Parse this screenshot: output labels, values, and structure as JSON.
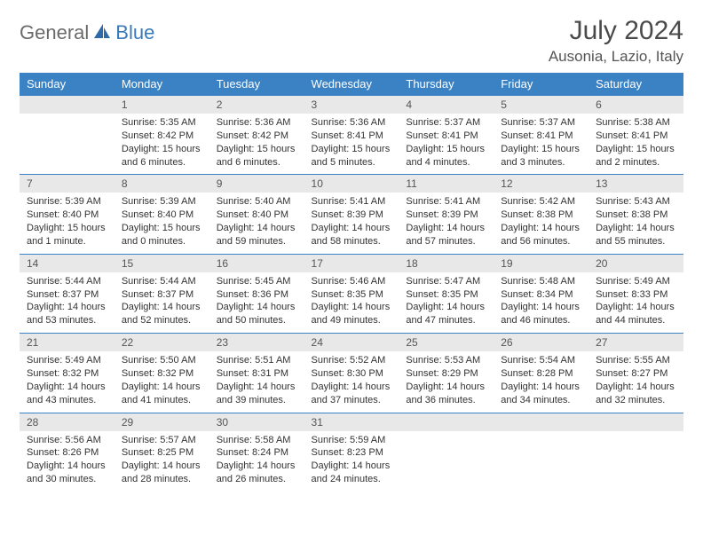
{
  "logo": {
    "text1": "General",
    "text2": "Blue",
    "icon_color": "#2e6aa8"
  },
  "header": {
    "month_title": "July 2024",
    "location": "Ausonia, Lazio, Italy"
  },
  "colors": {
    "header_bg": "#3a82c4",
    "header_text": "#ffffff",
    "daynum_bg": "#e8e8e8",
    "border": "#3a82c4",
    "body_text": "#333333"
  },
  "weekdays": [
    "Sunday",
    "Monday",
    "Tuesday",
    "Wednesday",
    "Thursday",
    "Friday",
    "Saturday"
  ],
  "weeks": [
    [
      null,
      {
        "n": "1",
        "sr": "5:35 AM",
        "ss": "8:42 PM",
        "dl": "15 hours and 6 minutes."
      },
      {
        "n": "2",
        "sr": "5:36 AM",
        "ss": "8:42 PM",
        "dl": "15 hours and 6 minutes."
      },
      {
        "n": "3",
        "sr": "5:36 AM",
        "ss": "8:41 PM",
        "dl": "15 hours and 5 minutes."
      },
      {
        "n": "4",
        "sr": "5:37 AM",
        "ss": "8:41 PM",
        "dl": "15 hours and 4 minutes."
      },
      {
        "n": "5",
        "sr": "5:37 AM",
        "ss": "8:41 PM",
        "dl": "15 hours and 3 minutes."
      },
      {
        "n": "6",
        "sr": "5:38 AM",
        "ss": "8:41 PM",
        "dl": "15 hours and 2 minutes."
      }
    ],
    [
      {
        "n": "7",
        "sr": "5:39 AM",
        "ss": "8:40 PM",
        "dl": "15 hours and 1 minute."
      },
      {
        "n": "8",
        "sr": "5:39 AM",
        "ss": "8:40 PM",
        "dl": "15 hours and 0 minutes."
      },
      {
        "n": "9",
        "sr": "5:40 AM",
        "ss": "8:40 PM",
        "dl": "14 hours and 59 minutes."
      },
      {
        "n": "10",
        "sr": "5:41 AM",
        "ss": "8:39 PM",
        "dl": "14 hours and 58 minutes."
      },
      {
        "n": "11",
        "sr": "5:41 AM",
        "ss": "8:39 PM",
        "dl": "14 hours and 57 minutes."
      },
      {
        "n": "12",
        "sr": "5:42 AM",
        "ss": "8:38 PM",
        "dl": "14 hours and 56 minutes."
      },
      {
        "n": "13",
        "sr": "5:43 AM",
        "ss": "8:38 PM",
        "dl": "14 hours and 55 minutes."
      }
    ],
    [
      {
        "n": "14",
        "sr": "5:44 AM",
        "ss": "8:37 PM",
        "dl": "14 hours and 53 minutes."
      },
      {
        "n": "15",
        "sr": "5:44 AM",
        "ss": "8:37 PM",
        "dl": "14 hours and 52 minutes."
      },
      {
        "n": "16",
        "sr": "5:45 AM",
        "ss": "8:36 PM",
        "dl": "14 hours and 50 minutes."
      },
      {
        "n": "17",
        "sr": "5:46 AM",
        "ss": "8:35 PM",
        "dl": "14 hours and 49 minutes."
      },
      {
        "n": "18",
        "sr": "5:47 AM",
        "ss": "8:35 PM",
        "dl": "14 hours and 47 minutes."
      },
      {
        "n": "19",
        "sr": "5:48 AM",
        "ss": "8:34 PM",
        "dl": "14 hours and 46 minutes."
      },
      {
        "n": "20",
        "sr": "5:49 AM",
        "ss": "8:33 PM",
        "dl": "14 hours and 44 minutes."
      }
    ],
    [
      {
        "n": "21",
        "sr": "5:49 AM",
        "ss": "8:32 PM",
        "dl": "14 hours and 43 minutes."
      },
      {
        "n": "22",
        "sr": "5:50 AM",
        "ss": "8:32 PM",
        "dl": "14 hours and 41 minutes."
      },
      {
        "n": "23",
        "sr": "5:51 AM",
        "ss": "8:31 PM",
        "dl": "14 hours and 39 minutes."
      },
      {
        "n": "24",
        "sr": "5:52 AM",
        "ss": "8:30 PM",
        "dl": "14 hours and 37 minutes."
      },
      {
        "n": "25",
        "sr": "5:53 AM",
        "ss": "8:29 PM",
        "dl": "14 hours and 36 minutes."
      },
      {
        "n": "26",
        "sr": "5:54 AM",
        "ss": "8:28 PM",
        "dl": "14 hours and 34 minutes."
      },
      {
        "n": "27",
        "sr": "5:55 AM",
        "ss": "8:27 PM",
        "dl": "14 hours and 32 minutes."
      }
    ],
    [
      {
        "n": "28",
        "sr": "5:56 AM",
        "ss": "8:26 PM",
        "dl": "14 hours and 30 minutes."
      },
      {
        "n": "29",
        "sr": "5:57 AM",
        "ss": "8:25 PM",
        "dl": "14 hours and 28 minutes."
      },
      {
        "n": "30",
        "sr": "5:58 AM",
        "ss": "8:24 PM",
        "dl": "14 hours and 26 minutes."
      },
      {
        "n": "31",
        "sr": "5:59 AM",
        "ss": "8:23 PM",
        "dl": "14 hours and 24 minutes."
      },
      null,
      null,
      null
    ]
  ],
  "labels": {
    "sunrise": "Sunrise:",
    "sunset": "Sunset:",
    "daylight": "Daylight:"
  }
}
